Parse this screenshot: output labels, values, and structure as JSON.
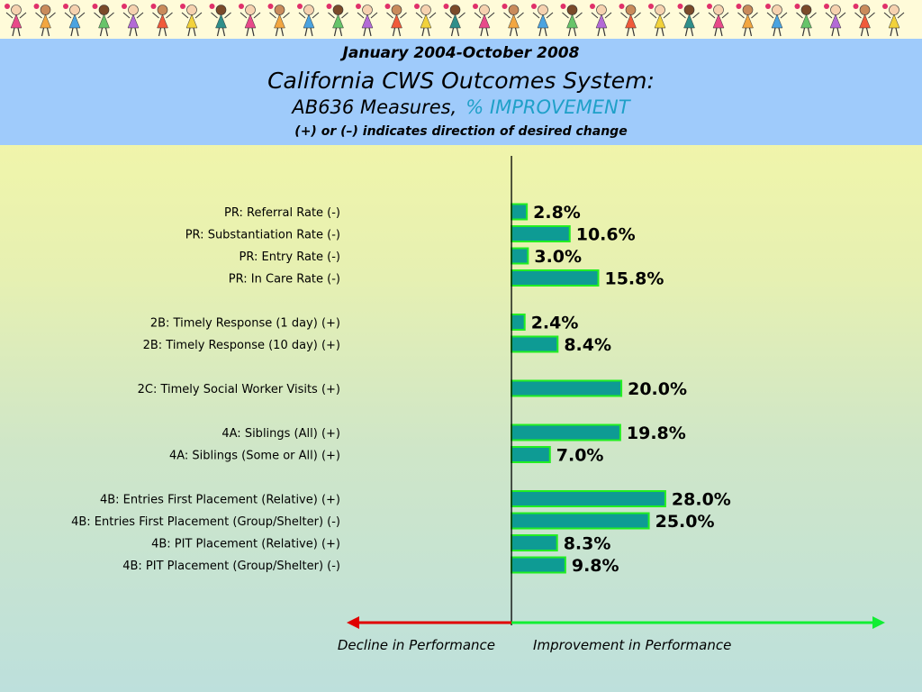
{
  "header": {
    "date_range": "January 2004-October 2008",
    "system_title": "California CWS Outcomes System:",
    "measures_label": "AB636 Measures,",
    "improvement_label": "% IMPROVEMENT",
    "direction_note": "(+) or (–) indicates direction of desired change"
  },
  "colors": {
    "bar_fill": "#0e9b94",
    "bar_border": "#22ee22",
    "decline_arrow": "#e00000",
    "improvement_arrow": "#11ee33",
    "header_bg": "#9fcbfb"
  },
  "chart_data": {
    "type": "bar",
    "orientation": "horizontal",
    "unit": "%",
    "categories": [
      "PR: Referral Rate (-)",
      "PR: Substantiation Rate (-)",
      "PR: Entry Rate (-)",
      "PR: In Care Rate (-)",
      "2B: Timely Response (1 day) (+)",
      "2B: Timely Response (10 day) (+)",
      "2C: Timely Social Worker Visits (+)",
      "4A: Siblings (All) (+)",
      "4A: Siblings (Some or All) (+)",
      "4B: Entries First Placement (Relative) (+)",
      "4B: Entries First Placement (Group/Shelter) (-)",
      "4B: PIT Placement (Relative) (+)",
      "4B: PIT Placement (Group/Shelter) (-)"
    ],
    "groups": [
      0,
      0,
      0,
      0,
      1,
      1,
      2,
      3,
      3,
      4,
      4,
      4,
      4
    ],
    "values": [
      2.8,
      10.6,
      3.0,
      15.8,
      2.4,
      8.4,
      20.0,
      19.8,
      7.0,
      28.0,
      25.0,
      8.3,
      9.8
    ],
    "value_labels": [
      "2.8%",
      "10.6%",
      "3.0%",
      "15.8%",
      "2.4%",
      "8.4%",
      "20.0%",
      "19.8%",
      "7.0%",
      "28.0%",
      "25.0%",
      "8.3%",
      "9.8%"
    ],
    "xlim": [
      -30,
      68
    ],
    "decline_label": "Decline in Performance",
    "improvement_label": "Improvement in Performance",
    "grid": false,
    "legend": "none"
  }
}
